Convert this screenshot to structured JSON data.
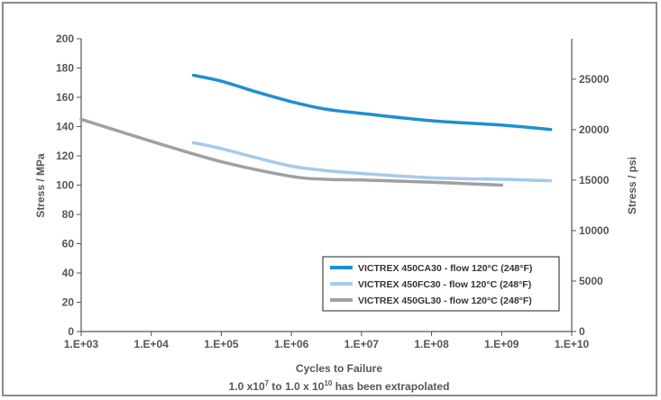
{
  "chart_data": {
    "type": "line",
    "xlabel": "Cycles to Failure",
    "note": {
      "pre": "1.0 x10",
      "exp1": "7",
      "mid": " to 1.0 x 10",
      "exp2": "10",
      "post": " has been extrapolated"
    },
    "ylabel_left": "Stress  / MPa",
    "ylabel_right": "Stress / psi",
    "x_scale": "log",
    "xlim": [
      1000,
      10000000000
    ],
    "ylim_left": [
      0,
      200
    ],
    "ylim_right": [
      0,
      29007.5
    ],
    "x_ticks": [
      "1.E+03",
      "1.E+04",
      "1.E+05",
      "1.E+06",
      "1.E+07",
      "1.E+08",
      "1.E+09",
      "1.E+10"
    ],
    "y_ticks_left": [
      "0",
      "20",
      "40",
      "60",
      "80",
      "100",
      "120",
      "140",
      "160",
      "180",
      "200"
    ],
    "y_ticks_right": [
      "0",
      "5000",
      "10000",
      "15000",
      "20000",
      "25000"
    ],
    "legend_position": "lower-right",
    "series": [
      {
        "name": "VICTREX 450CA30 - flow 120°C (248°F)",
        "color": "#1f8fcf",
        "x": [
          40000,
          100000,
          300000,
          1000000,
          3000000,
          10000000,
          100000000,
          1000000000,
          5000000000
        ],
        "y": [
          175,
          171,
          164,
          157,
          152,
          149,
          144,
          141,
          138
        ]
      },
      {
        "name": "VICTREX 450FC30  - flow 120°C (248°F)",
        "color": "#a7c9ea",
        "x": [
          40000,
          100000,
          300000,
          1000000,
          3000000,
          10000000,
          100000000,
          1000000000,
          5000000000
        ],
        "y": [
          129,
          125,
          119,
          113,
          110,
          108,
          105,
          104,
          103
        ]
      },
      {
        "name": "VICTREX 450GL30  - flow 120°C (248°F)",
        "color": "#a0a0a0",
        "x": [
          1000,
          10000,
          100000,
          1000000,
          3000000,
          10000000,
          100000000,
          1000000000
        ],
        "y": [
          145,
          130,
          116,
          106,
          104,
          103.5,
          102,
          100
        ]
      }
    ]
  }
}
